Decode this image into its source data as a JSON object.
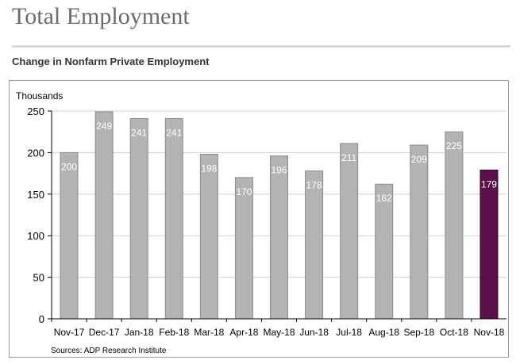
{
  "page": {
    "title": "Total Employment",
    "chart_heading": "Change in Nonfarm Private Employment"
  },
  "chart_data": {
    "type": "bar",
    "title": "Change in Nonfarm Private Employment",
    "ylabel": "Thousands",
    "xlabel": "",
    "categories": [
      "Nov-17",
      "Dec-17",
      "Jan-18",
      "Feb-18",
      "Mar-18",
      "Apr-18",
      "May-18",
      "Jun-18",
      "Jul-18",
      "Aug-18",
      "Sep-18",
      "Oct-18",
      "Nov-18"
    ],
    "values": [
      200,
      249,
      241,
      241,
      198,
      170,
      196,
      178,
      211,
      162,
      209,
      225,
      179
    ],
    "ylim": [
      0,
      250
    ],
    "yticks": [
      0,
      50,
      100,
      150,
      200,
      250
    ],
    "grid": true,
    "legend": "none",
    "source": "Sources: ADP Research Institute",
    "colors": {
      "bar": "#b3b3b3",
      "bar_stroke": "#8c8c8c",
      "highlight": "#5a0f4b",
      "highlight_stroke": "#2f0627",
      "grid": "#cfcfcf"
    },
    "highlight_index": 12
  }
}
